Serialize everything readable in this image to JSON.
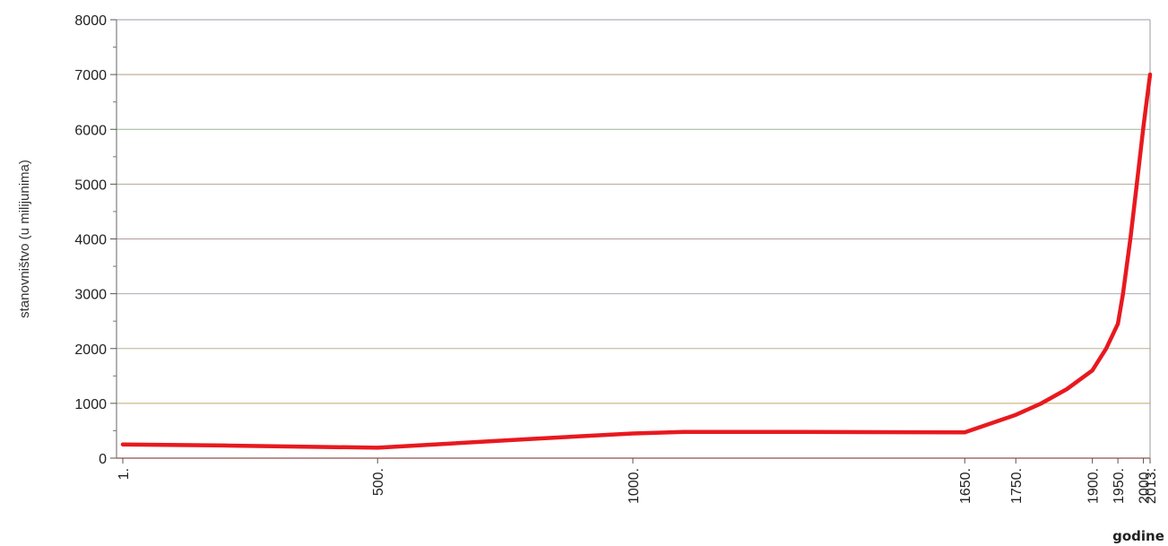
{
  "chart_data": {
    "type": "line",
    "title": "",
    "xlabel": "godine",
    "ylabel": "stanovništvo (u milijunima)",
    "ylim": [
      0,
      8000
    ],
    "yticks": [
      "0",
      "1000",
      "2000",
      "3000",
      "4000",
      "5000",
      "6000",
      "7000",
      "8000"
    ],
    "xlim": [
      1,
      2013
    ],
    "xticks": [
      {
        "value": 1,
        "label": "1."
      },
      {
        "value": 500,
        "label": "500."
      },
      {
        "value": 1000,
        "label": "1000."
      },
      {
        "value": 1650,
        "label": "1650."
      },
      {
        "value": 1750,
        "label": "1750."
      },
      {
        "value": 1900,
        "label": "1900."
      },
      {
        "value": 1950,
        "label": "1950."
      },
      {
        "value": 2000,
        "label": "2000."
      },
      {
        "value": 2013,
        "label": "2013."
      }
    ],
    "grid": true,
    "series": [
      {
        "color": "#e8191f",
        "points": [
          [
            1,
            250
          ],
          [
            200,
            230
          ],
          [
            500,
            190
          ],
          [
            800,
            350
          ],
          [
            1000,
            450
          ],
          [
            1100,
            480
          ],
          [
            1300,
            480
          ],
          [
            1650,
            470
          ],
          [
            1750,
            790
          ],
          [
            1800,
            1000
          ],
          [
            1850,
            1260
          ],
          [
            1900,
            1600
          ],
          [
            1927,
            2000
          ],
          [
            1950,
            2450
          ],
          [
            1960,
            3000
          ],
          [
            1975,
            4050
          ],
          [
            1987,
            5000
          ],
          [
            2000,
            6050
          ],
          [
            2013,
            7000
          ]
        ]
      }
    ]
  }
}
